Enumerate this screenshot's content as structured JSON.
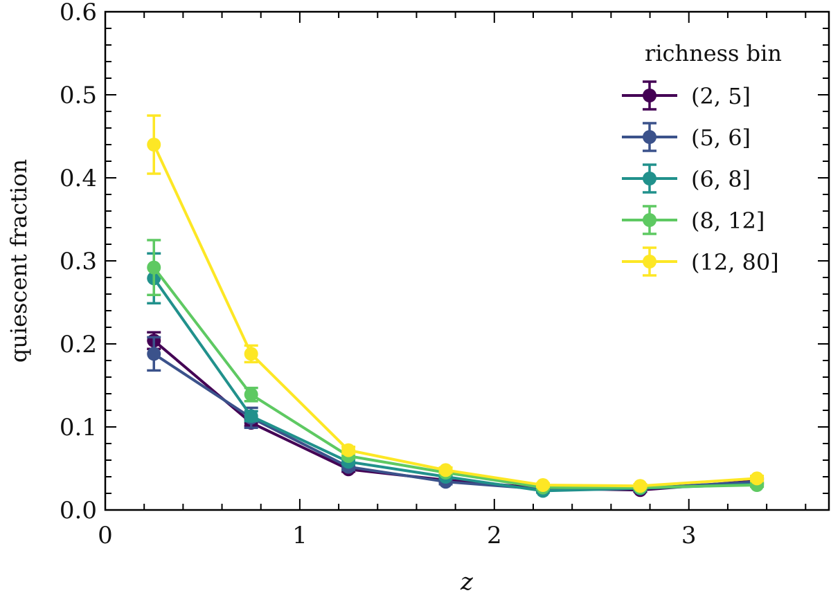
{
  "chart_data": {
    "type": "line",
    "xlabel": "z",
    "ylabel": "quiescent fraction",
    "xlim": [
      0,
      3.72
    ],
    "ylim": [
      0,
      0.6
    ],
    "xticks": [
      0,
      1,
      2,
      3
    ],
    "xtick_labels": [
      "0",
      "1",
      "2",
      "3"
    ],
    "yticks": [
      0,
      0.1,
      0.2,
      0.3,
      0.4,
      0.5,
      0.6
    ],
    "ytick_labels": [
      "0.0",
      "0.1",
      "0.2",
      "0.3",
      "0.4",
      "0.5",
      "0.6"
    ],
    "grid": false,
    "legend_title": "richness bin",
    "legend_position": "top-right",
    "x": [
      0.25,
      0.75,
      1.25,
      1.75,
      2.25,
      2.75,
      3.35
    ],
    "series": [
      {
        "name": "(2, 5]",
        "color": "#440154",
        "values": [
          0.204,
          0.105,
          0.049,
          0.036,
          0.026,
          0.024,
          0.035
        ],
        "errors": [
          0.01,
          0.004,
          0.003,
          0.002,
          0.002,
          0.002,
          0.003
        ]
      },
      {
        "name": "(5, 6]",
        "color": "#3b528b",
        "values": [
          0.188,
          0.111,
          0.052,
          0.034,
          0.025,
          0.026,
          0.034
        ],
        "errors": [
          0.02,
          0.012,
          0.004,
          0.003,
          0.002,
          0.002,
          0.003
        ]
      },
      {
        "name": "(6, 8]",
        "color": "#21918c",
        "values": [
          0.279,
          0.113,
          0.058,
          0.04,
          0.023,
          0.026,
          0.031
        ],
        "errors": [
          0.03,
          0.006,
          0.003,
          0.002,
          0.002,
          0.002,
          0.002
        ]
      },
      {
        "name": "(8, 12]",
        "color": "#5ec962",
        "values": [
          0.292,
          0.139,
          0.065,
          0.045,
          0.027,
          0.027,
          0.03
        ],
        "errors": [
          0.033,
          0.008,
          0.003,
          0.002,
          0.002,
          0.002,
          0.002
        ]
      },
      {
        "name": "(12, 80]",
        "color": "#fde725",
        "values": [
          0.44,
          0.188,
          0.072,
          0.048,
          0.03,
          0.029,
          0.038
        ],
        "errors": [
          0.035,
          0.01,
          0.004,
          0.003,
          0.002,
          0.002,
          0.003
        ]
      }
    ]
  }
}
